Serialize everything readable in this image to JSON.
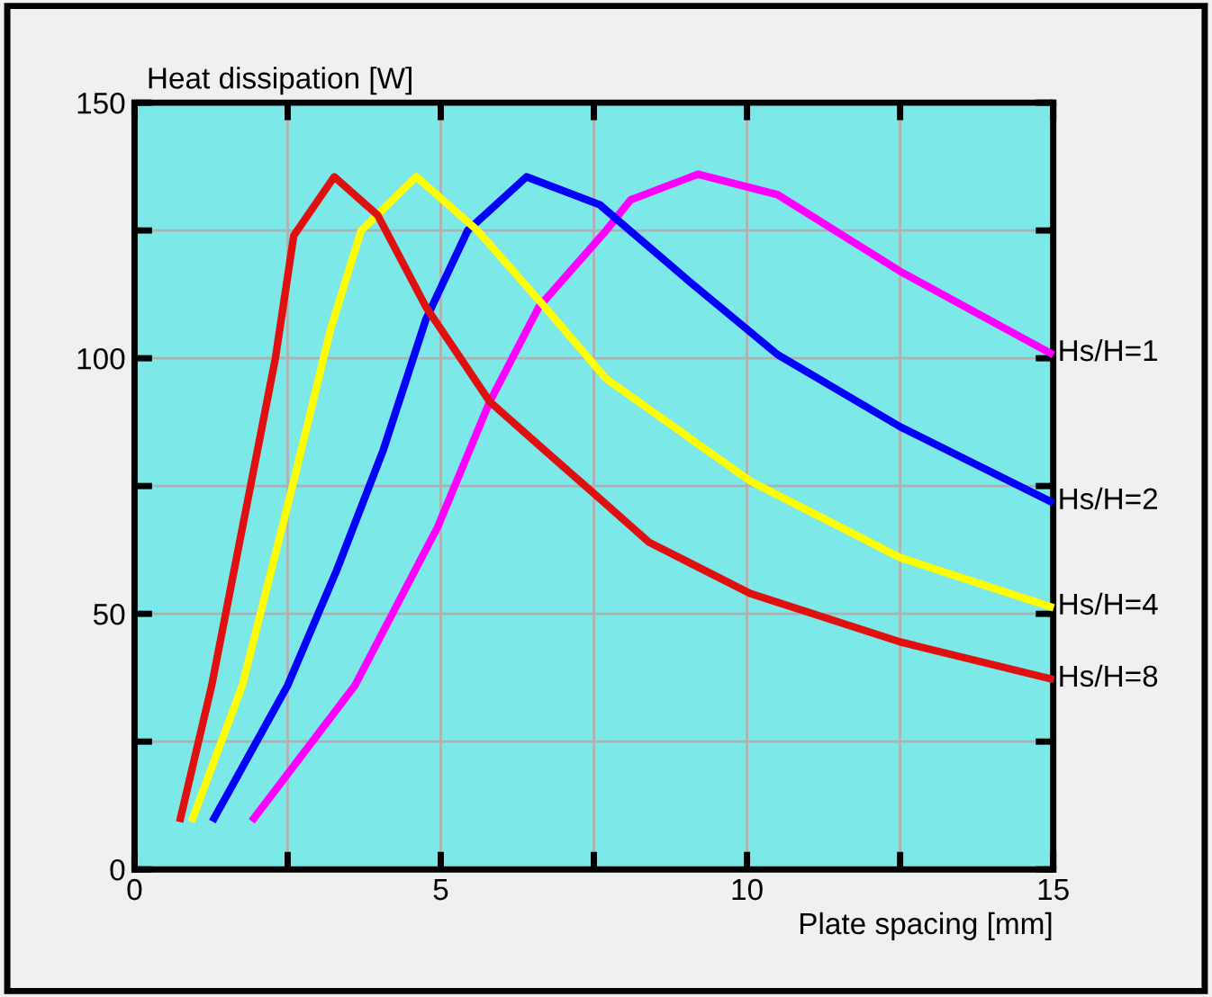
{
  "chart_data": {
    "type": "line",
    "ylabel": "Heat dissipation [W]",
    "xlabel": "Plate spacing [mm]",
    "xlim": [
      0,
      15
    ],
    "ylim": [
      0,
      150
    ],
    "xticks": [
      0,
      {
        "value": 2.5,
        "label": null
      },
      5,
      {
        "value": 7.5,
        "label": null
      },
      10,
      {
        "value": 12.5,
        "label": null
      },
      15
    ],
    "yticks": [
      0,
      {
        "value": 25,
        "label": null
      },
      50,
      {
        "value": 75,
        "label": null
      },
      100,
      {
        "value": 125,
        "label": null
      },
      150
    ],
    "grid": true,
    "legend": false,
    "marker": "none",
    "line_style": "solid",
    "series": [
      {
        "name": "Hs/H=1",
        "color": "#ff00ff",
        "x": [
          1.95,
          3.6,
          4.95,
          5.8,
          6.6,
          7.7,
          8.1,
          9.2,
          10.5,
          12.5,
          14.95
        ],
        "values": [
          10,
          36,
          67,
          91.5,
          110,
          125,
          131,
          136,
          132,
          117,
          101
        ]
      },
      {
        "name": "Hs/H=2",
        "color": "#0000ff",
        "x": [
          1.3,
          2.5,
          3.3,
          4.06,
          4.76,
          5.44,
          6.4,
          7.6,
          9.06,
          10.5,
          12.5,
          14.95
        ],
        "values": [
          10,
          36,
          58.5,
          82,
          107.7,
          125,
          135.5,
          130,
          115,
          100.7,
          86.6,
          72
        ]
      },
      {
        "name": "Hs/H=4",
        "color": "#ffff00",
        "x": [
          0.95,
          1.76,
          2.6,
          3.2,
          3.7,
          4.6,
          5.6,
          6.7,
          7.7,
          10.05,
          12.5,
          14.95
        ],
        "values": [
          10,
          36,
          76,
          105.6,
          125,
          135.5,
          125,
          110,
          96,
          76,
          61,
          51.4
        ]
      },
      {
        "name": "Hs/H=8",
        "color": "#e01010",
        "x": [
          0.75,
          1.26,
          1.91,
          2.3,
          2.6,
          3.26,
          3.97,
          4.76,
          5.8,
          6.6,
          7.6,
          8.4,
          10.05,
          12.5,
          14.95
        ],
        "values": [
          10,
          36,
          76,
          100,
          124,
          135.5,
          128,
          110,
          91.5,
          83,
          72.5,
          64,
          54,
          44.5,
          37.3
        ]
      }
    ]
  }
}
